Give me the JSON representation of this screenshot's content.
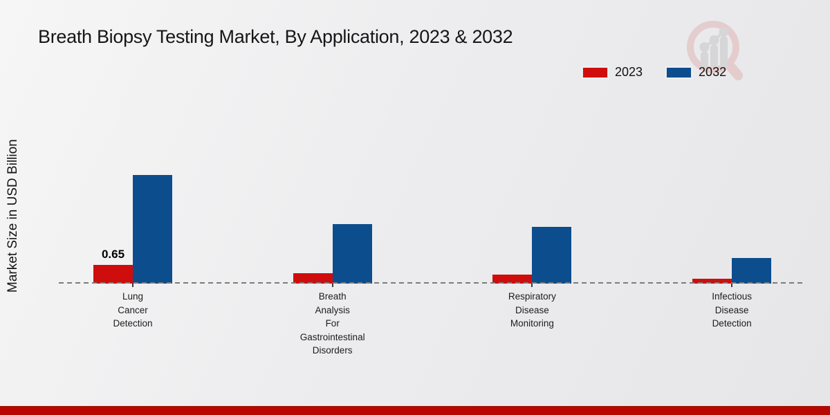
{
  "header": {
    "title": "Breath Biopsy Testing Market, By Application, 2023 & 2032"
  },
  "chart_data": {
    "type": "bar",
    "title": "Breath Biopsy Testing Market, By Application, 2023 & 2032",
    "xlabel": "",
    "ylabel": "Market Size in USD Billion",
    "categories": [
      "Lung Cancer Detection",
      "Breath Analysis For Gastrointestinal Disorders",
      "Respiratory Disease Monitoring",
      "Infectious Disease Detection"
    ],
    "series": [
      {
        "name": "2023",
        "color": "#cf0d0c",
        "values": [
          0.65,
          0.35,
          0.32,
          0.17
        ]
      },
      {
        "name": "2032",
        "color": "#0c4d8e",
        "values": [
          3.78,
          2.08,
          1.97,
          0.9
        ]
      }
    ],
    "data_labels": [
      {
        "series": "2023",
        "category": "Lung Cancer Detection",
        "text": "0.65"
      }
    ],
    "ylim": [
      0,
      4.6
    ],
    "grid": false,
    "legend_position": "top-right",
    "baseline_style": "dashed",
    "axis_line_color": "#7b7b7b"
  },
  "watermark": {
    "icon": "magnifier-bar-chart-logo"
  },
  "footer": {
    "accent_color": "#b70700"
  }
}
